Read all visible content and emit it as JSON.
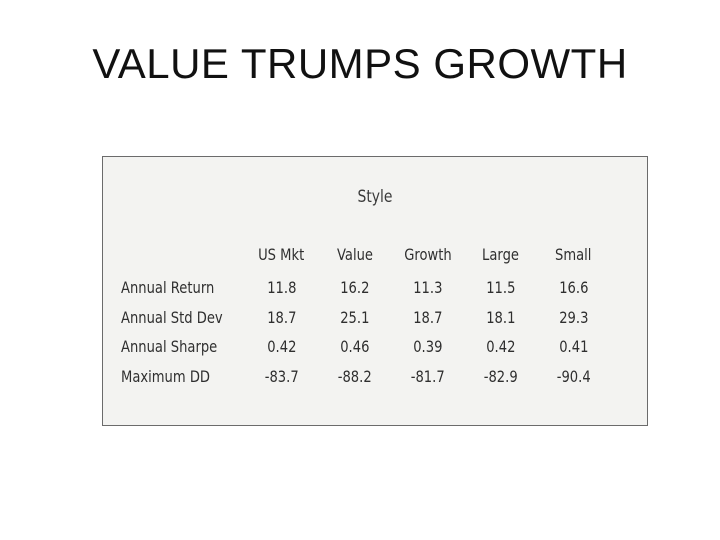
{
  "slide": {
    "title": "VALUE TRUMPS GROWTH"
  },
  "table": {
    "caption": "Style",
    "columns": [
      "US Mkt",
      "Value",
      "Growth",
      "Large",
      "Small"
    ],
    "rows": [
      {
        "label": "Annual Return",
        "values": [
          "11.8",
          "16.2",
          "11.3",
          "11.5",
          "16.6"
        ]
      },
      {
        "label": "Annual Std Dev",
        "values": [
          "18.7",
          "25.1",
          "18.7",
          "18.1",
          "29.3"
        ]
      },
      {
        "label": "Annual Sharpe",
        "values": [
          "0.42",
          "0.46",
          "0.39",
          "0.42",
          "0.41"
        ]
      },
      {
        "label": "Maximum DD",
        "values": [
          "-83.7",
          "-88.2",
          "-81.7",
          "-82.9",
          "-90.4"
        ]
      }
    ]
  }
}
